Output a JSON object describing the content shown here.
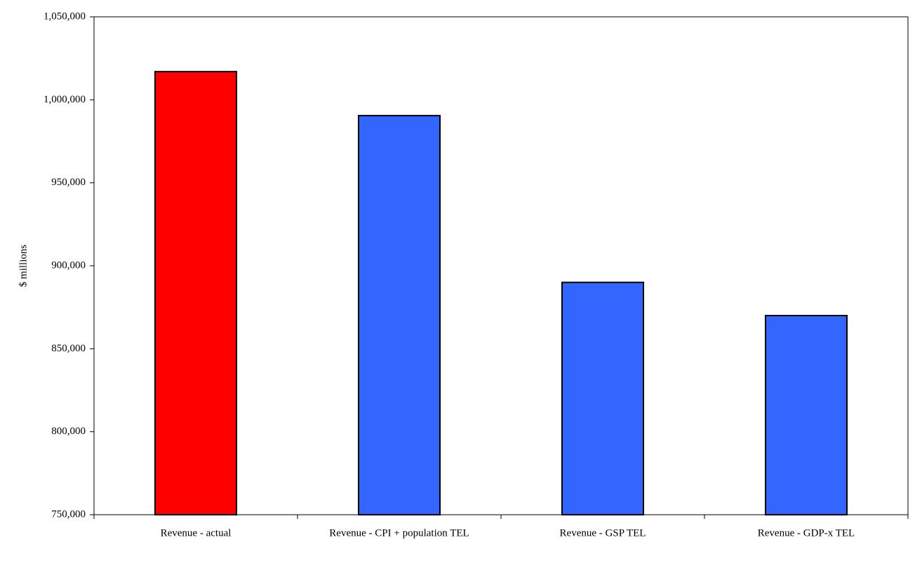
{
  "chart_data": {
    "type": "bar",
    "y_label": "$ millions",
    "categories": [
      "Revenue - actual",
      "Revenue - CPI + population TEL",
      "Revenue - GSP TEL",
      "Revenue - GDP-x TEL"
    ],
    "values": [
      1017000,
      990500,
      890000,
      870000
    ],
    "colors": [
      "#ff0000",
      "#3366ff",
      "#3366ff",
      "#3366ff"
    ],
    "ylim": [
      750000,
      1050000
    ],
    "yticks": [
      {
        "value": 750000,
        "label": "750,000"
      },
      {
        "value": 800000,
        "label": "800,000"
      },
      {
        "value": 850000,
        "label": "850,000"
      },
      {
        "value": 900000,
        "label": "900,000"
      },
      {
        "value": 950000,
        "label": "950,000"
      },
      {
        "value": 1000000,
        "label": "1,000,000"
      },
      {
        "value": 1050000,
        "label": "1,050,000"
      }
    ],
    "grid": false
  }
}
